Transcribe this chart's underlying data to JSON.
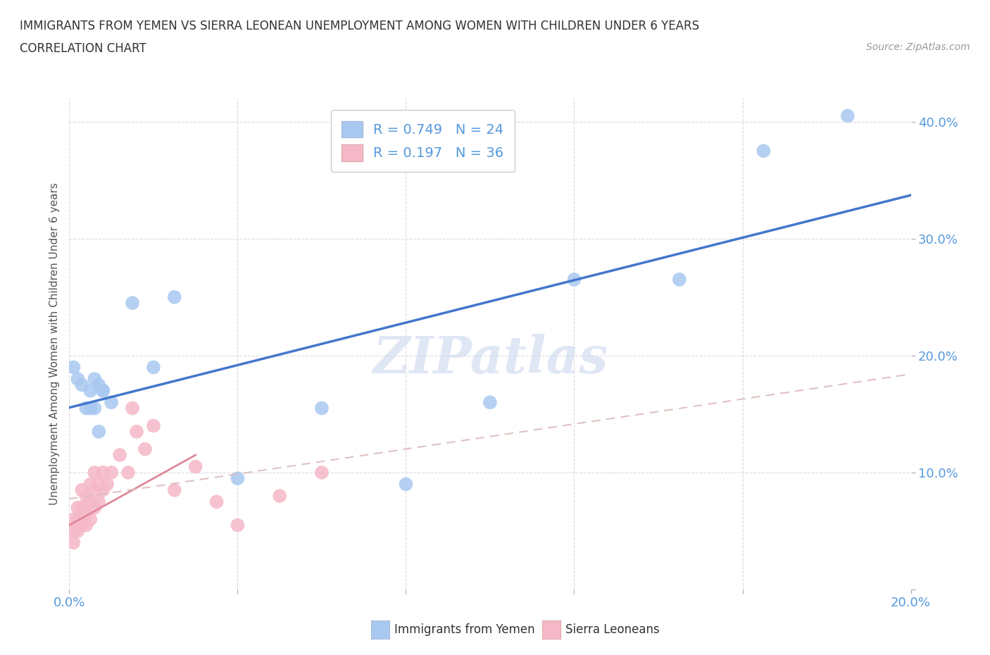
{
  "title_line1": "IMMIGRANTS FROM YEMEN VS SIERRA LEONEAN UNEMPLOYMENT AMONG WOMEN WITH CHILDREN UNDER 6 YEARS",
  "title_line2": "CORRELATION CHART",
  "source_text": "Source: ZipAtlas.com",
  "ylabel": "Unemployment Among Women with Children Under 6 years",
  "xlim": [
    0,
    0.2
  ],
  "ylim": [
    0,
    0.42
  ],
  "x_ticks": [
    0.0,
    0.04,
    0.08,
    0.12,
    0.16,
    0.2
  ],
  "y_ticks": [
    0.0,
    0.1,
    0.2,
    0.3,
    0.4
  ],
  "color_yemen": "#a8c8f0",
  "color_sierra": "#f5b8c8",
  "color_line_yemen": "#4477cc",
  "color_line_sierra_dashed": "#ddbbbb",
  "color_line_sierra_solid": "#dd8899",
  "yemen_x": [
    0.001,
    0.002,
    0.003,
    0.004,
    0.005,
    0.006,
    0.007,
    0.008,
    0.01,
    0.015,
    0.02,
    0.025,
    0.04,
    0.06,
    0.08,
    0.1,
    0.12,
    0.145,
    0.165,
    0.185,
    0.005,
    0.006,
    0.007,
    0.008
  ],
  "yemen_y": [
    0.19,
    0.18,
    0.175,
    0.155,
    0.155,
    0.155,
    0.135,
    0.17,
    0.16,
    0.245,
    0.19,
    0.25,
    0.095,
    0.155,
    0.09,
    0.16,
    0.265,
    0.265,
    0.375,
    0.405,
    0.17,
    0.18,
    0.175,
    0.17
  ],
  "sierra_x": [
    0.001,
    0.001,
    0.001,
    0.002,
    0.002,
    0.002,
    0.003,
    0.003,
    0.003,
    0.004,
    0.004,
    0.004,
    0.005,
    0.005,
    0.005,
    0.006,
    0.006,
    0.006,
    0.007,
    0.007,
    0.008,
    0.008,
    0.009,
    0.01,
    0.012,
    0.014,
    0.015,
    0.016,
    0.018,
    0.02,
    0.025,
    0.03,
    0.035,
    0.04,
    0.05,
    0.06
  ],
  "sierra_y": [
    0.06,
    0.05,
    0.04,
    0.07,
    0.06,
    0.05,
    0.085,
    0.07,
    0.055,
    0.08,
    0.065,
    0.055,
    0.09,
    0.075,
    0.06,
    0.1,
    0.085,
    0.07,
    0.09,
    0.075,
    0.1,
    0.085,
    0.09,
    0.1,
    0.115,
    0.1,
    0.155,
    0.135,
    0.12,
    0.14,
    0.085,
    0.105,
    0.075,
    0.055,
    0.08,
    0.1
  ],
  "background_color": "#ffffff",
  "grid_color": "#cccccc",
  "tick_color": "#5599dd"
}
